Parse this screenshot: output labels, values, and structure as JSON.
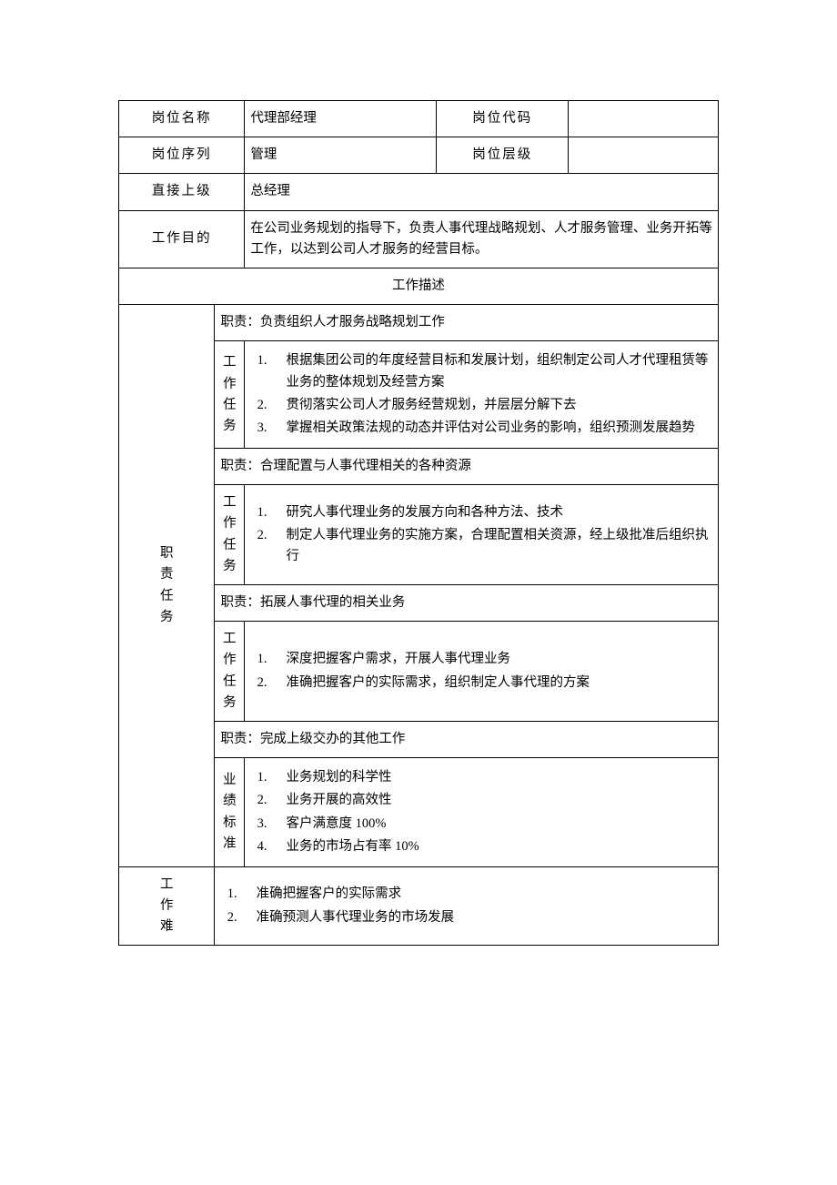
{
  "colors": {
    "border": "#000000",
    "background": "#ffffff",
    "text": "#000000"
  },
  "typography": {
    "label_font": "KaiTi",
    "body_font": "SimSun",
    "label_fontsize_pt": 14,
    "body_fontsize_pt": 11
  },
  "header": {
    "position_name_label": "岗位名称",
    "position_name_value": "代理部经理",
    "position_code_label": "岗位代码",
    "position_code_value": "",
    "series_label": "岗位序列",
    "series_value": "管理",
    "level_label": "岗位层级",
    "level_value": "",
    "supervisor_label": "直接上级",
    "supervisor_value": "总经理",
    "purpose_label": "工作目的",
    "purpose_value": "在公司业务规划的指导下，负责人事代理战略规划、人才服务管理、业务开拓等工作，以达到公司人才服务的经营目标。"
  },
  "section_title": "工作描述",
  "responsibilities": {
    "side_label": "职责任务",
    "task_col_label": "工作任务",
    "duty_prefix": "职责：",
    "items": [
      {
        "duty": "负责组织人才服务战略规划工作",
        "tasks": [
          "根据集团公司的年度经营目标和发展计划，组织制定公司人才代理租赁等业务的整体规划及经营方案",
          "贯彻落实公司人才服务经营规划，并层层分解下去",
          "掌握相关政策法规的动态并评估对公司业务的影响，组织预测发展趋势"
        ]
      },
      {
        "duty": "合理配置与人事代理相关的各种资源",
        "tasks": [
          "研究人事代理业务的发展方向和各种方法、技术",
          "制定人事代理业务的实施方案，合理配置相关资源，经上级批准后组织执行"
        ]
      },
      {
        "duty": "拓展人事代理的相关业务",
        "tasks": [
          "深度把握客户需求，开展人事代理业务",
          "准确把握客户的实际需求，组织制定人事代理的方案"
        ]
      },
      {
        "duty": "完成上级交办的其他工作",
        "tasks": []
      }
    ]
  },
  "performance": {
    "label": "业绩标准",
    "items": [
      "业务规划的科学性",
      "业务开展的高效性",
      "客户满意度 100%",
      "业务的市场占有率 10%"
    ]
  },
  "difficulties": {
    "label": "工作难",
    "items": [
      "准确把握客户的实际需求",
      "准确预测人事代理业务的市场发展"
    ]
  },
  "layout": {
    "col_widths_pct": [
      16,
      5,
      32,
      22,
      25
    ]
  }
}
